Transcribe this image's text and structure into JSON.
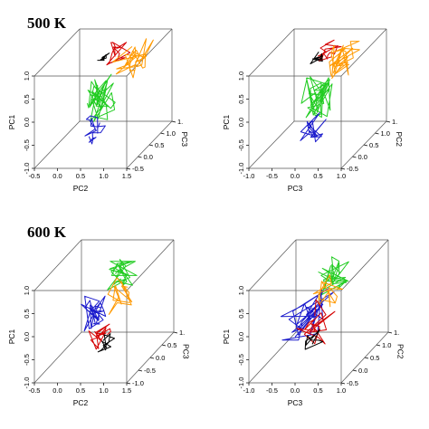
{
  "sections": [
    {
      "title": "500 K"
    },
    {
      "title": "600 K"
    }
  ],
  "chart_data": [
    {
      "type": "scatter",
      "panel": "500K-left",
      "x_axis": {
        "label": "PC2",
        "ticks": [
          "-0.5",
          "0.0",
          "0.5",
          "1.0",
          "1.5"
        ],
        "range": [
          -0.5,
          1.5
        ]
      },
      "y_axis": {
        "label": "PC1",
        "ticks": [
          "-1.0",
          "-0.5",
          "0.0",
          "0.5",
          "1.0"
        ],
        "range": [
          -1.0,
          1.0
        ]
      },
      "z_axis": {
        "label": "PC3",
        "ticks": [
          "-0.5",
          "0.0",
          "0.5",
          "1.0",
          "1."
        ],
        "range": [
          -0.5,
          1.0
        ]
      },
      "series": [
        {
          "color": "#d40000",
          "center": [
            0.55,
            0.8,
            0.6
          ],
          "spread": [
            0.22,
            0.18,
            0.25
          ],
          "n": 18
        },
        {
          "color": "#ff9900",
          "center": [
            0.85,
            0.55,
            0.7
          ],
          "spread": [
            0.3,
            0.3,
            0.3
          ],
          "n": 30
        },
        {
          "color": "#22cc22",
          "center": [
            0.45,
            0.05,
            0.2
          ],
          "spread": [
            0.25,
            0.45,
            0.25
          ],
          "n": 40
        },
        {
          "color": "#1a1acc",
          "center": [
            0.5,
            -0.5,
            0.0
          ],
          "spread": [
            0.2,
            0.3,
            0.2
          ],
          "n": 22
        },
        {
          "color": "#000000",
          "center": [
            0.35,
            0.7,
            0.55
          ],
          "spread": [
            0.12,
            0.1,
            0.12
          ],
          "n": 10
        }
      ]
    },
    {
      "type": "scatter",
      "panel": "500K-right",
      "x_axis": {
        "label": "PC3",
        "ticks": [
          "-1.0",
          "-0.5",
          "0.0",
          "0.5",
          "1.0"
        ],
        "range": [
          -1.0,
          1.0
        ]
      },
      "y_axis": {
        "label": "PC1",
        "ticks": [
          "-1.0",
          "-0.5",
          "0.0",
          "0.5",
          "1.0"
        ],
        "range": [
          -1.0,
          1.0
        ]
      },
      "z_axis": {
        "label": "PC2",
        "ticks": [
          "-0.5",
          "0.0",
          "0.5",
          "1.0",
          "1."
        ],
        "range": [
          -0.5,
          1.0
        ]
      },
      "series": [
        {
          "color": "#d40000",
          "center": [
            0.05,
            0.8,
            0.5
          ],
          "spread": [
            0.2,
            0.18,
            0.2
          ],
          "n": 18
        },
        {
          "color": "#ff9900",
          "center": [
            0.3,
            0.6,
            0.6
          ],
          "spread": [
            0.3,
            0.3,
            0.3
          ],
          "n": 30
        },
        {
          "color": "#22cc22",
          "center": [
            0.0,
            0.0,
            0.2
          ],
          "spread": [
            0.25,
            0.45,
            0.25
          ],
          "n": 40
        },
        {
          "color": "#1a1acc",
          "center": [
            0.05,
            -0.5,
            0.0
          ],
          "spread": [
            0.2,
            0.3,
            0.2
          ],
          "n": 22
        },
        {
          "color": "#000000",
          "center": [
            -0.1,
            0.75,
            0.4
          ],
          "spread": [
            0.12,
            0.1,
            0.12
          ],
          "n": 10
        }
      ]
    },
    {
      "type": "scatter",
      "panel": "600K-left",
      "x_axis": {
        "label": "PC2",
        "ticks": [
          "-0.5",
          "0.0",
          "0.5",
          "1.0",
          "1.5"
        ],
        "range": [
          -0.5,
          1.5
        ]
      },
      "y_axis": {
        "label": "PC1",
        "ticks": [
          "-1.0",
          "-0.5",
          "0.0",
          "0.5",
          "1.0"
        ],
        "range": [
          -1.0,
          1.0
        ]
      },
      "z_axis": {
        "label": "PC3",
        "ticks": [
          "-1.0",
          "-0.5",
          "0.0",
          "0.5",
          "1."
        ],
        "range": [
          -1.0,
          1.0
        ]
      },
      "series": [
        {
          "color": "#22cc22",
          "center": [
            0.6,
            0.55,
            0.5
          ],
          "spread": [
            0.25,
            0.3,
            0.3
          ],
          "n": 30
        },
        {
          "color": "#ff9900",
          "center": [
            0.7,
            0.2,
            0.3
          ],
          "spread": [
            0.25,
            0.3,
            0.3
          ],
          "n": 18
        },
        {
          "color": "#1a1acc",
          "center": [
            0.3,
            0.0,
            0.0
          ],
          "spread": [
            0.2,
            0.4,
            0.3
          ],
          "n": 30
        },
        {
          "color": "#d40000",
          "center": [
            0.45,
            -0.55,
            0.0
          ],
          "spread": [
            0.2,
            0.25,
            0.25
          ],
          "n": 18
        },
        {
          "color": "#000000",
          "center": [
            0.6,
            -0.65,
            -0.1
          ],
          "spread": [
            0.15,
            0.2,
            0.2
          ],
          "n": 12
        }
      ]
    },
    {
      "type": "scatter",
      "panel": "600K-right",
      "x_axis": {
        "label": "PC3",
        "ticks": [
          "-1.0",
          "-0.5",
          "0.0",
          "0.5",
          "1.0"
        ],
        "range": [
          -1.0,
          1.0
        ]
      },
      "y_axis": {
        "label": "PC1",
        "ticks": [
          "-1.0",
          "-0.5",
          "0.0",
          "0.5",
          "1.0"
        ],
        "range": [
          -1.0,
          1.0
        ]
      },
      "z_axis": {
        "label": "PC2",
        "ticks": [
          "-0.5",
          "0.0",
          "0.5",
          "1.0",
          "1."
        ],
        "range": [
          -0.5,
          1.0
        ]
      },
      "series": [
        {
          "color": "#22cc22",
          "center": [
            0.2,
            0.6,
            0.5
          ],
          "spread": [
            0.25,
            0.3,
            0.3
          ],
          "n": 30
        },
        {
          "color": "#1a1acc",
          "center": [
            -0.2,
            0.0,
            0.2
          ],
          "spread": [
            0.4,
            0.45,
            0.3
          ],
          "n": 34
        },
        {
          "color": "#ff9900",
          "center": [
            0.1,
            0.35,
            0.4
          ],
          "spread": [
            0.2,
            0.3,
            0.3
          ],
          "n": 16
        },
        {
          "color": "#d40000",
          "center": [
            0.0,
            -0.25,
            0.2
          ],
          "spread": [
            0.3,
            0.35,
            0.3
          ],
          "n": 20
        },
        {
          "color": "#000000",
          "center": [
            0.0,
            -0.5,
            0.1
          ],
          "spread": [
            0.2,
            0.25,
            0.2
          ],
          "n": 10
        }
      ]
    }
  ]
}
